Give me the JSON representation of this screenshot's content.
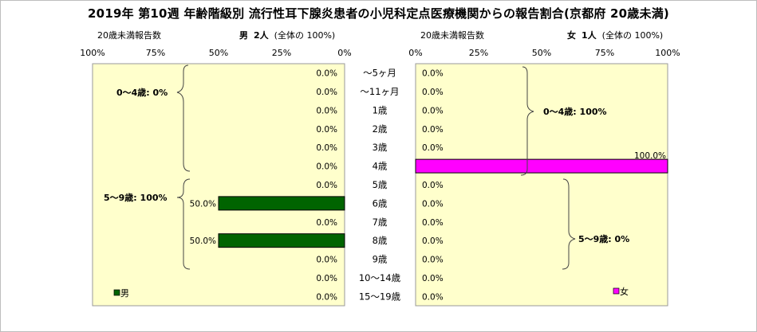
{
  "title": "2019年 第10週 年齢階級別 流行性耳下腺炎患者の小児科定点医療機関からの報告割合(京都府 20歳未満)",
  "left_panel": {
    "count_label": "20歳未満報告数",
    "sex_label": "男",
    "count_text": "2人",
    "total_note": "(全体の  100%)",
    "legend_label": "男",
    "color": "#006400",
    "brace_labels": [
      "0～4歳: 0%",
      "5～9歳: 100%"
    ]
  },
  "right_panel": {
    "count_label": "20歳未満報告数",
    "sex_label": "女",
    "count_text": "1人",
    "total_note": "(全体の  100%)",
    "legend_label": "女",
    "color": "#ff00ff",
    "brace_labels": [
      "0～4歳: 100%",
      "5～9歳: 0%"
    ]
  },
  "chart_data": {
    "type": "bar",
    "orientation": "horizontal",
    "categories": [
      "～5ヶ月",
      "～11ヶ月",
      "1歳",
      "2歳",
      "3歳",
      "4歳",
      "5歳",
      "6歳",
      "7歳",
      "8歳",
      "9歳",
      "10～14歳",
      "15～19歳"
    ],
    "x_ticks_left": [
      "100%",
      "75%",
      "50%",
      "25%",
      "0%"
    ],
    "x_ticks_right": [
      "0%",
      "25%",
      "50%",
      "75%",
      "100%"
    ],
    "xlim": [
      0,
      100
    ],
    "grid": false,
    "background": "#ffffcc",
    "series": [
      {
        "name": "男",
        "values": [
          0,
          0,
          0,
          0,
          0,
          0,
          0,
          50,
          0,
          50,
          0,
          0,
          0
        ],
        "labels": [
          "0.0%",
          "0.0%",
          "0.0%",
          "0.0%",
          "0.0%",
          "0.0%",
          "0.0%",
          "50.0%",
          "0.0%",
          "50.0%",
          "0.0%",
          "0.0%",
          "0.0%"
        ]
      },
      {
        "name": "女",
        "values": [
          0,
          0,
          0,
          0,
          0,
          100,
          0,
          0,
          0,
          0,
          0,
          0,
          0
        ],
        "labels": [
          "0.0%",
          "0.0%",
          "0.0%",
          "0.0%",
          "0.0%",
          "100.0%",
          "0.0%",
          "0.0%",
          "0.0%",
          "0.0%",
          "0.0%",
          "0.0%",
          "0.0%"
        ]
      }
    ]
  }
}
